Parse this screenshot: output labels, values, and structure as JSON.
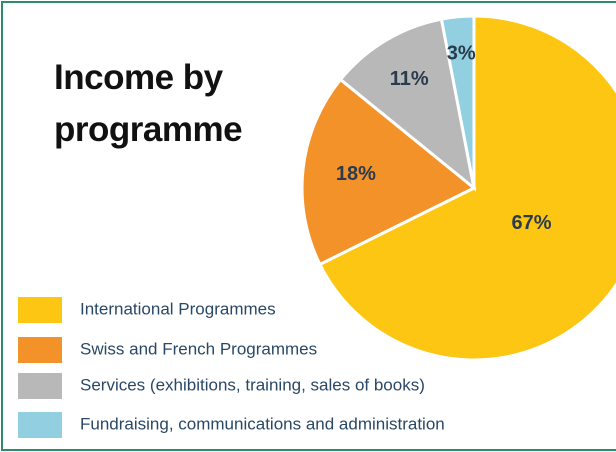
{
  "chart_data": {
    "type": "pie",
    "title": "Income by programme",
    "categories": [
      "International Programmes",
      "Swiss and French Programmes",
      "Services (exhibitions, training, sales of books)",
      "Fundraising, communications and administration"
    ],
    "values": [
      67,
      18,
      11,
      3
    ],
    "value_labels": [
      "67%",
      "18%",
      "11%",
      "3%"
    ],
    "colors": [
      "#fcc612",
      "#f4922a",
      "#b8b8b8",
      "#92cfe0"
    ],
    "legend": "bottom-left"
  }
}
